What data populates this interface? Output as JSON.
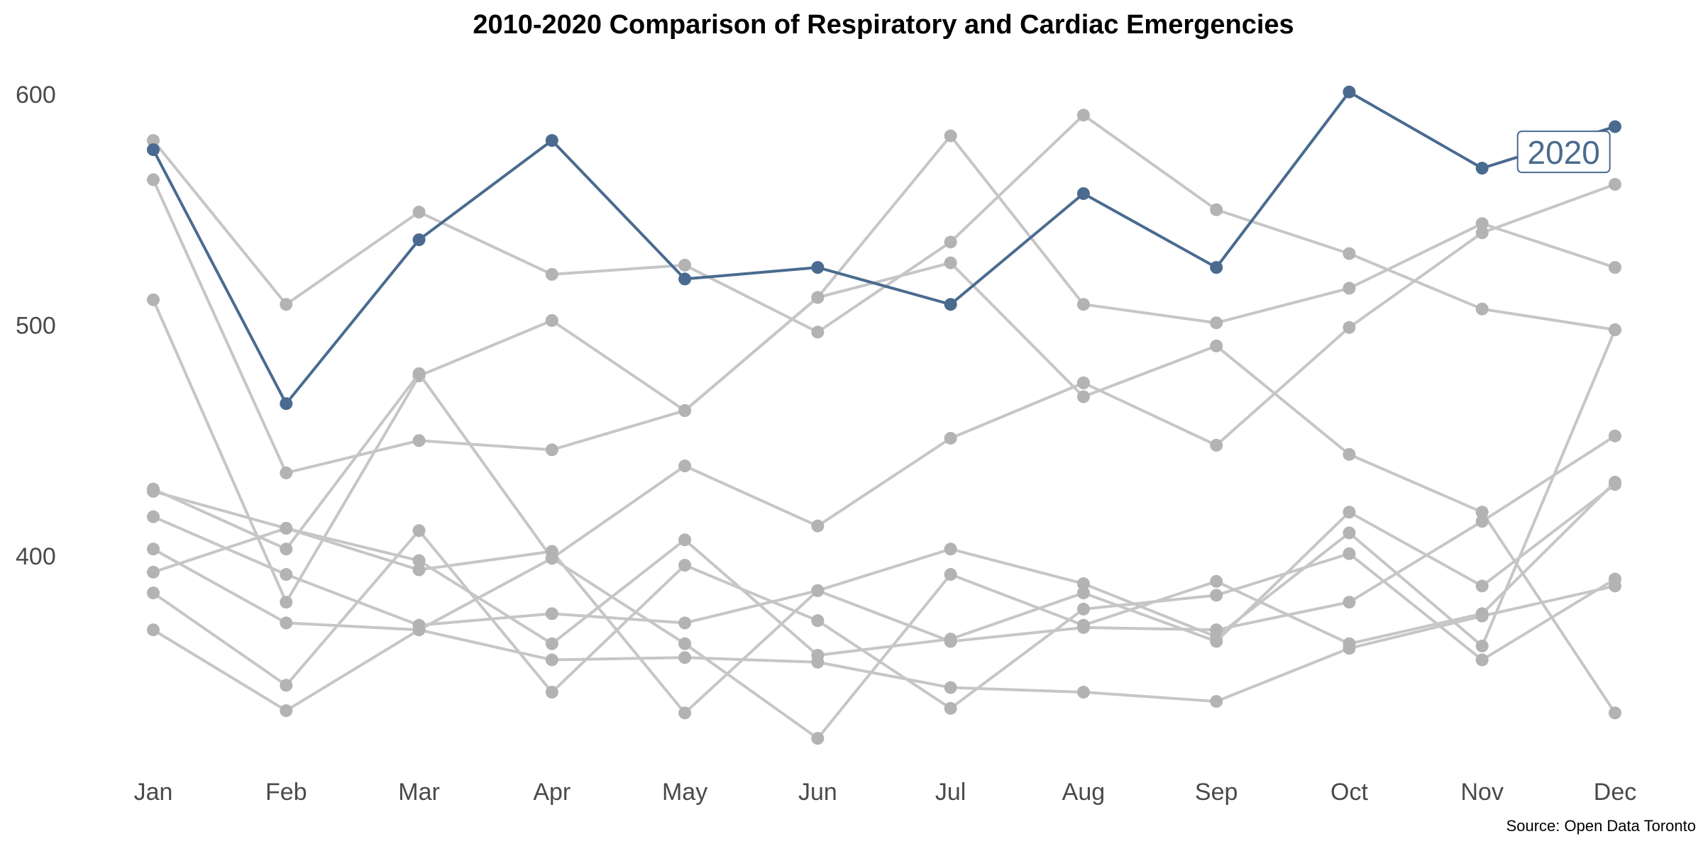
{
  "chart_data": {
    "type": "line",
    "title": "2010-2020 Comparison of Respiratory and Cardiac Emergencies",
    "caption": "Source: Open Data Toronto",
    "categories": [
      "Jan",
      "Feb",
      "Mar",
      "Apr",
      "May",
      "Jun",
      "Jul",
      "Aug",
      "Sep",
      "Oct",
      "Nov",
      "Dec"
    ],
    "ylim": [
      305,
      615
    ],
    "yticks": [
      400,
      500,
      600
    ],
    "grid": false,
    "colors": {
      "highlight": "#4a6b8f",
      "background_line": "#c6c6c6",
      "background_point": "#b3b3b3"
    },
    "highlight": {
      "name": "2020",
      "values": [
        576,
        466,
        537,
        580,
        520,
        525,
        509,
        557,
        525,
        601,
        568,
        586
      ]
    },
    "background_series": [
      {
        "values": [
          580,
          509,
          549,
          522,
          526,
          497,
          536,
          591,
          550,
          531,
          507,
          498
        ]
      },
      {
        "values": [
          563,
          436,
          450,
          446,
          463,
          512,
          582,
          509,
          501,
          516,
          544,
          525
        ]
      },
      {
        "values": [
          511,
          380,
          478,
          502,
          463,
          512,
          527,
          469,
          491,
          444,
          419,
          332
        ]
      },
      {
        "values": [
          429,
          403,
          479,
          399,
          439,
          413,
          451,
          475,
          448,
          499,
          540,
          561
        ]
      },
      {
        "values": [
          428,
          412,
          394,
          402,
          332,
          385,
          403,
          388,
          365,
          410,
          361,
          498
        ]
      },
      {
        "values": [
          417,
          392,
          370,
          375,
          371,
          385,
          363,
          369,
          368,
          380,
          415,
          452
        ]
      },
      {
        "values": [
          403,
          371,
          368,
          355,
          356,
          354,
          343,
          341,
          337,
          360,
          374,
          387
        ]
      },
      {
        "values": [
          393,
          412,
          398,
          362,
          407,
          357,
          364,
          384,
          363,
          419,
          387,
          431
        ]
      },
      {
        "values": [
          384,
          344,
          411,
          341,
          396,
          372,
          334,
          377,
          383,
          401,
          355,
          390
        ]
      },
      {
        "values": [
          368,
          333,
          368,
          399,
          362,
          321,
          392,
          370,
          389,
          362,
          375,
          432
        ]
      }
    ]
  }
}
